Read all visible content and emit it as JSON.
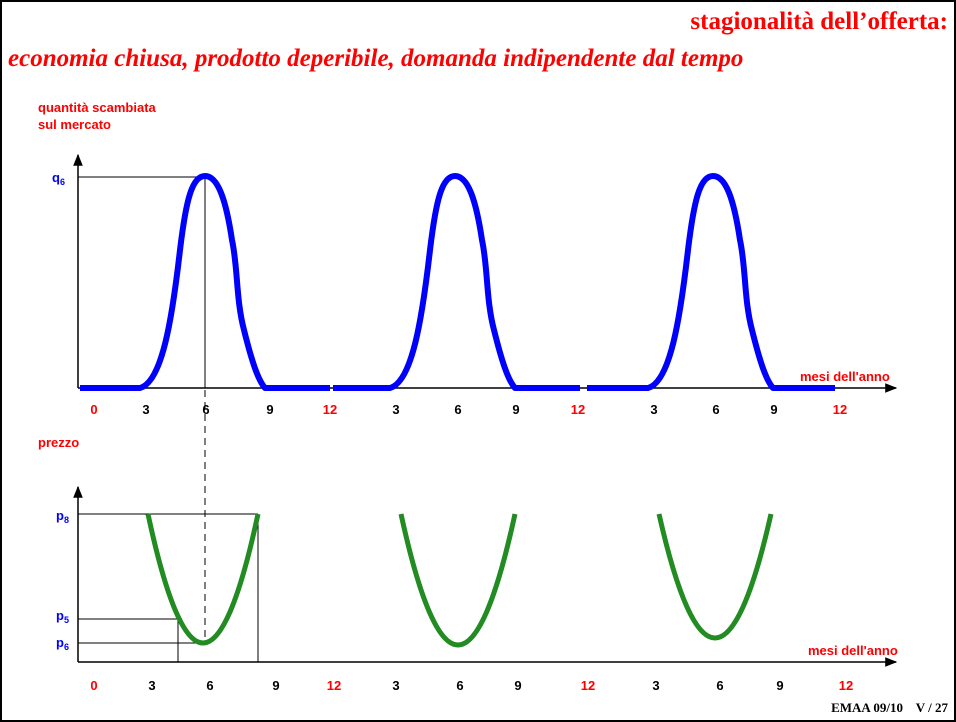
{
  "header": {
    "title": "stagionalità dell’offerta:",
    "subtitle": "economia chiusa, prodotto deperibile, domanda indipendente dal tempo"
  },
  "top_panel": {
    "y_label": [
      "quantità scambiata",
      "sul mercato"
    ],
    "x_label": "mesi dell'anno",
    "level": {
      "base": "q",
      "sub": "6"
    },
    "ticks": [
      "0",
      "3",
      "6",
      "9",
      "12",
      "3",
      "6",
      "9",
      "12",
      "3",
      "6",
      "9",
      "12"
    ]
  },
  "bottom_panel": {
    "y_label": "prezzo",
    "x_label": "mesi dell'anno",
    "levels": [
      {
        "base": "p",
        "sub": "8"
      },
      {
        "base": "p",
        "sub": "5"
      },
      {
        "base": "p",
        "sub": "6"
      }
    ],
    "ticks": [
      "0",
      "3",
      "6",
      "9",
      "12",
      "3",
      "6",
      "9",
      "12",
      "3",
      "6",
      "9",
      "12"
    ]
  },
  "footer": "EMAA 09/10    V / 27"
}
